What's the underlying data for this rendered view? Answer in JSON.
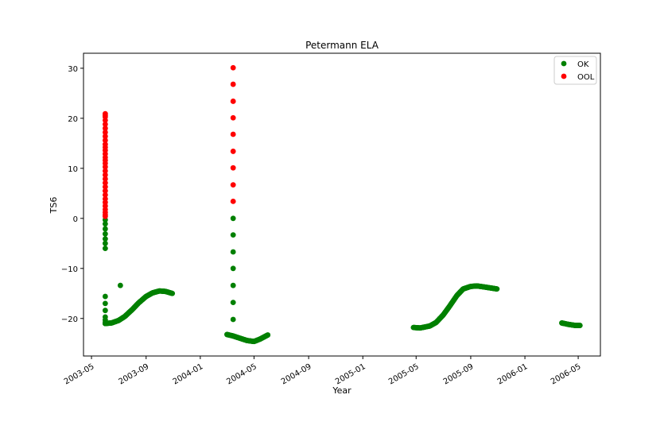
{
  "chart_data": {
    "type": "scatter",
    "title": "Petermann ELA",
    "xlabel": "Year",
    "ylabel": "TS6",
    "x_axis_type": "date",
    "xlim": [
      "2003-04-13",
      "2006-06-20"
    ],
    "ylim": [
      -27.5,
      33.0
    ],
    "x_ticks": [
      "2003-05",
      "2003-09",
      "2004-01",
      "2004-05",
      "2004-09",
      "2005-01",
      "2005-05",
      "2005-09",
      "2006-01",
      "2006-05"
    ],
    "y_ticks": [
      -20,
      -10,
      0,
      10,
      20,
      30
    ],
    "grid": false,
    "legend_position": "top-right",
    "series": [
      {
        "name": "OK",
        "color": "#008000",
        "segments": [
          {
            "x": [
              "2003-06-01",
              "2003-06-01",
              "2003-06-01",
              "2003-06-01",
              "2003-06-01",
              "2003-06-01",
              "2003-06-01",
              "2003-06-01",
              "2003-06-01",
              "2003-06-01",
              "2003-06-01",
              "2003-06-01",
              "2003-06-01",
              "2003-06-01",
              "2003-06-01"
            ],
            "y": [
              -0.3,
              -1.1,
              -2.1,
              -3.1,
              -4.1,
              -5.0,
              -6.0,
              -15.6,
              -17.0,
              -18.4,
              -19.7,
              -20.3,
              -20.8,
              -21.0,
              -21.0
            ]
          },
          {
            "x": [
              "2003-07-05"
            ],
            "y": [
              -13.4
            ]
          },
          {
            "x": [
              "2004-03-15",
              "2004-03-15",
              "2004-03-15",
              "2004-03-15",
              "2004-03-15",
              "2004-03-15",
              "2004-03-15"
            ],
            "y": [
              0.0,
              -3.3,
              -6.7,
              -10.0,
              -13.4,
              -16.8,
              -20.2
            ]
          }
        ],
        "curves": [
          {
            "start": "2003-06-01",
            "end": "2003-10-30",
            "points": [
              [
                "2003-06-01",
                -21.0
              ],
              [
                "2003-06-15",
                -20.9
              ],
              [
                "2003-07-01",
                -20.4
              ],
              [
                "2003-07-15",
                -19.6
              ],
              [
                "2003-08-01",
                -18.2
              ],
              [
                "2003-08-15",
                -16.9
              ],
              [
                "2003-09-01",
                -15.6
              ],
              [
                "2003-09-15",
                -14.9
              ],
              [
                "2003-10-01",
                -14.5
              ],
              [
                "2003-10-15",
                -14.6
              ],
              [
                "2003-10-30",
                -15.0
              ]
            ]
          },
          {
            "start": "2004-03-01",
            "end": "2004-06-01",
            "points": [
              [
                "2004-03-01",
                -23.2
              ],
              [
                "2004-03-15",
                -23.5
              ],
              [
                "2004-04-01",
                -24.0
              ],
              [
                "2004-04-15",
                -24.4
              ],
              [
                "2004-05-01",
                -24.6
              ],
              [
                "2004-05-15",
                -24.1
              ],
              [
                "2004-06-01",
                -23.3
              ]
            ]
          },
          {
            "start": "2005-04-25",
            "end": "2005-10-30",
            "points": [
              [
                "2005-04-25",
                -21.8
              ],
              [
                "2005-05-10",
                -21.9
              ],
              [
                "2005-06-01",
                -21.5
              ],
              [
                "2005-06-15",
                -20.8
              ],
              [
                "2005-07-01",
                -19.3
              ],
              [
                "2005-07-15",
                -17.6
              ],
              [
                "2005-08-01",
                -15.4
              ],
              [
                "2005-08-15",
                -14.1
              ],
              [
                "2005-09-01",
                -13.6
              ],
              [
                "2005-09-15",
                -13.5
              ],
              [
                "2005-10-01",
                -13.7
              ],
              [
                "2005-10-30",
                -14.1
              ]
            ]
          },
          {
            "start": "2006-03-25",
            "end": "2006-05-05",
            "points": [
              [
                "2006-03-25",
                -20.9
              ],
              [
                "2006-04-10",
                -21.2
              ],
              [
                "2006-04-25",
                -21.4
              ],
              [
                "2006-05-05",
                -21.4
              ]
            ]
          }
        ]
      },
      {
        "name": "OOL",
        "color": "#ff0000",
        "segments": [
          {
            "x": [
              "2003-06-01",
              "2003-06-01",
              "2003-06-01",
              "2003-06-01",
              "2003-06-01",
              "2003-06-01",
              "2003-06-01",
              "2003-06-01",
              "2003-06-01",
              "2003-06-01",
              "2003-06-01",
              "2003-06-01",
              "2003-06-01",
              "2003-06-01",
              "2003-06-01",
              "2003-06-01",
              "2003-06-01",
              "2003-06-01",
              "2003-06-01",
              "2003-06-01",
              "2003-06-01",
              "2003-06-01",
              "2003-06-01",
              "2003-06-01",
              "2003-06-01",
              "2003-06-01",
              "2003-06-01",
              "2003-06-01",
              "2003-06-01",
              "2003-06-01",
              "2003-06-01"
            ],
            "y": [
              20.9,
              20.3,
              19.6,
              18.8,
              18.0,
              17.2,
              16.4,
              15.6,
              14.8,
              14.2,
              13.6,
              12.9,
              12.2,
              11.6,
              11.0,
              10.3,
              9.5,
              8.7,
              7.9,
              7.1,
              6.3,
              5.5,
              4.7,
              3.9,
              3.2,
              2.5,
              1.8,
              1.2,
              0.7,
              0.4,
              20.6
            ]
          },
          {
            "x": [
              "2004-03-15",
              "2004-03-15",
              "2004-03-15",
              "2004-03-15",
              "2004-03-15",
              "2004-03-15",
              "2004-03-15",
              "2004-03-15",
              "2004-03-15"
            ],
            "y": [
              30.1,
              26.8,
              23.4,
              20.1,
              16.8,
              13.4,
              10.1,
              6.7,
              3.4
            ]
          }
        ]
      }
    ]
  }
}
